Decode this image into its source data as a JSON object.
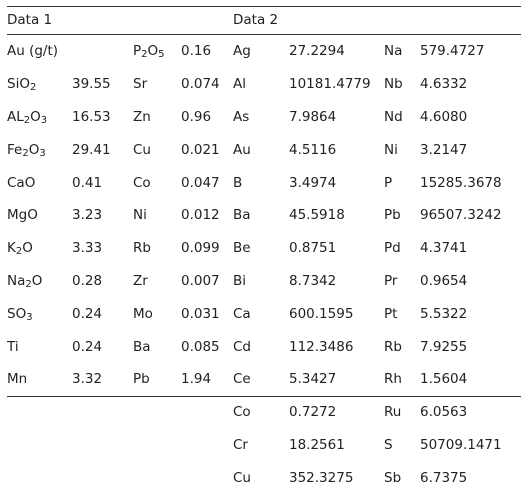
{
  "headers": {
    "data1": "Data 1",
    "data2": "Data 2"
  },
  "rows": [
    [
      "Au (g/t)",
      "",
      "P2O5",
      "0.16",
      "Ag",
      "27.2294",
      "Na",
      "579.4727"
    ],
    [
      "SiO2",
      "39.55",
      "Sr",
      "0.074",
      "Al",
      "10181.4779",
      "Nb",
      "4.6332"
    ],
    [
      "AL2O3",
      "16.53",
      "Zn",
      "0.96",
      "As",
      "7.9864",
      "Nd",
      "4.6080"
    ],
    [
      "Fe2O3",
      "29.41",
      "Cu",
      "0.021",
      "Au",
      "4.5116",
      "Ni",
      "3.2147"
    ],
    [
      "CaO",
      "0.41",
      "Co",
      "0.047",
      "B",
      "3.4974",
      "P",
      "15285.3678"
    ],
    [
      "MgO",
      "3.23",
      "Ni",
      "0.012",
      "Ba",
      "45.5918",
      "Pb",
      "96507.3242"
    ],
    [
      "K2O",
      "3.33",
      "Rb",
      "0.099",
      "Be",
      "0.8751",
      "Pd",
      "4.3741"
    ],
    [
      "Na2O",
      "0.28",
      "Zr",
      "0.007",
      "Bi",
      "8.7342",
      "Pr",
      "0.9654"
    ],
    [
      "SO3",
      "0.24",
      "Mo",
      "0.031",
      "Ca",
      "600.1595",
      "Pt",
      "5.5322"
    ],
    [
      "Ti",
      "0.24",
      "Ba",
      "0.085",
      "Cd",
      "112.3486",
      "Rb",
      "7.9255"
    ],
    [
      "Mn",
      "3.32",
      "Pb",
      "1.94",
      "Ce",
      "5.3427",
      "Rh",
      "1.5604"
    ],
    [
      "",
      "",
      "",
      "",
      "Co",
      "0.7272",
      "Ru",
      "6.0563"
    ],
    [
      "",
      "",
      "",
      "",
      "Cr",
      "18.2561",
      "S",
      "50709.1471"
    ],
    [
      "",
      "",
      "",
      "",
      "Cu",
      "352.3275",
      "Sb",
      "6.7375"
    ]
  ]
}
